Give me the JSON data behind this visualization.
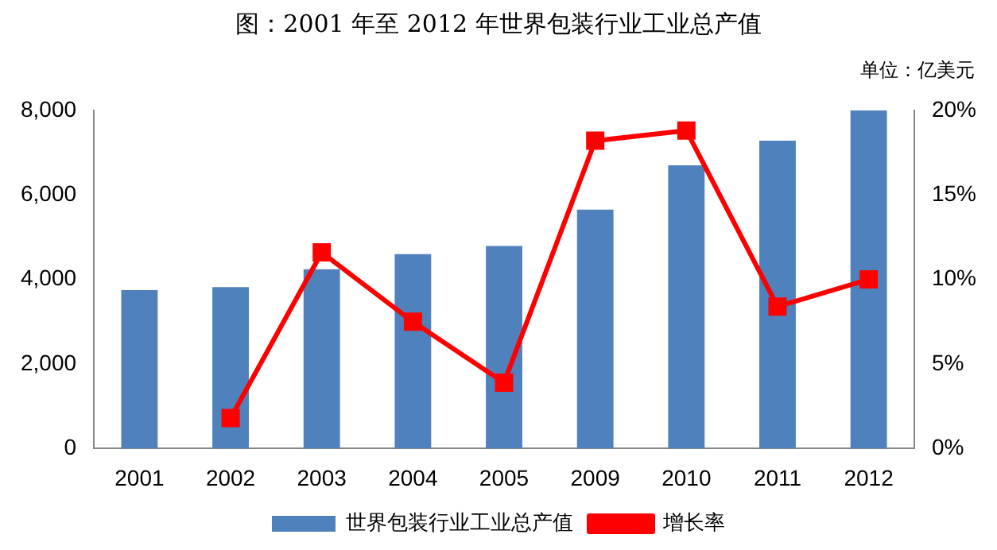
{
  "chart_data": {
    "type": "bar",
    "title": "图：2001 年至 2012 年世界包装行业工业总产值",
    "annotations": [
      "单位：亿美元"
    ],
    "categories": [
      "2001",
      "2002",
      "2003",
      "2004",
      "2005",
      "2009",
      "2010",
      "2011",
      "2012"
    ],
    "series": [
      {
        "name": "世界包装行业工业总产值",
        "color": "#4f81bd",
        "values": [
          3750,
          3820,
          4240,
          4600,
          4790,
          5650,
          6700,
          7280,
          8000
        ]
      },
      {
        "name": "增长率",
        "type": "line",
        "axis": "y2",
        "color": "#ff0000",
        "marker": "square",
        "values": [
          null,
          1.8,
          11.6,
          7.5,
          3.9,
          18.2,
          18.8,
          8.4,
          10.0
        ]
      }
    ],
    "ylim": [
      0,
      8000
    ],
    "yticks": [
      {
        "value": 0,
        "label": "0"
      },
      {
        "value": 2000,
        "label": "2,000"
      },
      {
        "value": 4000,
        "label": "4,000"
      },
      {
        "value": 6000,
        "label": "6,000"
      },
      {
        "value": 8000,
        "label": "8,000"
      }
    ],
    "y2lim": [
      0,
      20
    ],
    "y2ticks": [
      {
        "value": 0,
        "label": "0%"
      },
      {
        "value": 5,
        "label": "5%"
      },
      {
        "value": 10,
        "label": "10%"
      },
      {
        "value": 15,
        "label": "15%"
      },
      {
        "value": 20,
        "label": "20%"
      }
    ],
    "grid": false,
    "legend": "bottom"
  }
}
